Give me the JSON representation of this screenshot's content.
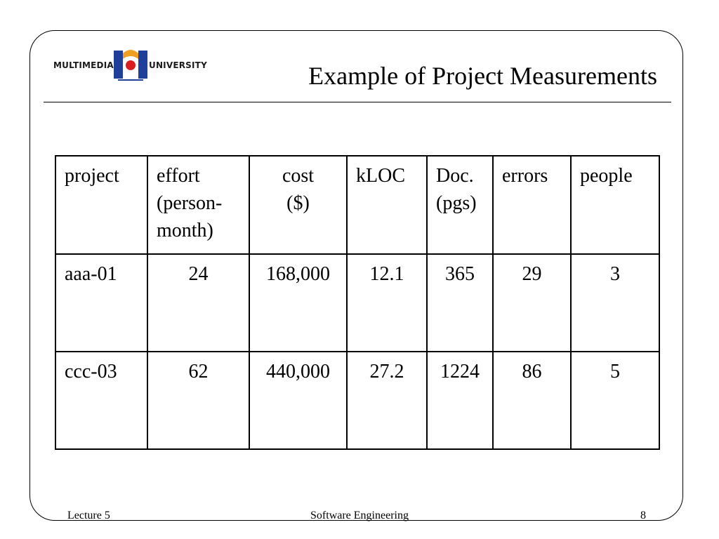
{
  "logo": {
    "left_text": "MULTIMEDIA",
    "right_text": "UNIVERSITY",
    "colors": {
      "blue": "#1f3f9b",
      "orange": "#f0a020",
      "red": "#d81e1e"
    }
  },
  "header": {
    "title": "Example of Project Measurements"
  },
  "table": {
    "headers": [
      {
        "lines": [
          "project"
        ]
      },
      {
        "lines": [
          "effort",
          "(person-",
          "month)"
        ]
      },
      {
        "lines": [
          "cost",
          "($)"
        ]
      },
      {
        "lines": [
          "kLOC"
        ]
      },
      {
        "lines": [
          "Doc.",
          "(pgs)"
        ]
      },
      {
        "lines": [
          "errors"
        ]
      },
      {
        "lines": [
          "people"
        ]
      }
    ],
    "rows": [
      [
        "aaa-01",
        "24",
        "168,000",
        "12.1",
        "365",
        "29",
        "3"
      ],
      [
        "ccc-03",
        "62",
        "440,000",
        "27.2",
        "1224",
        "86",
        "5"
      ]
    ]
  },
  "footer": {
    "left": "Lecture 5",
    "center": "Software Engineering",
    "right": "8"
  }
}
